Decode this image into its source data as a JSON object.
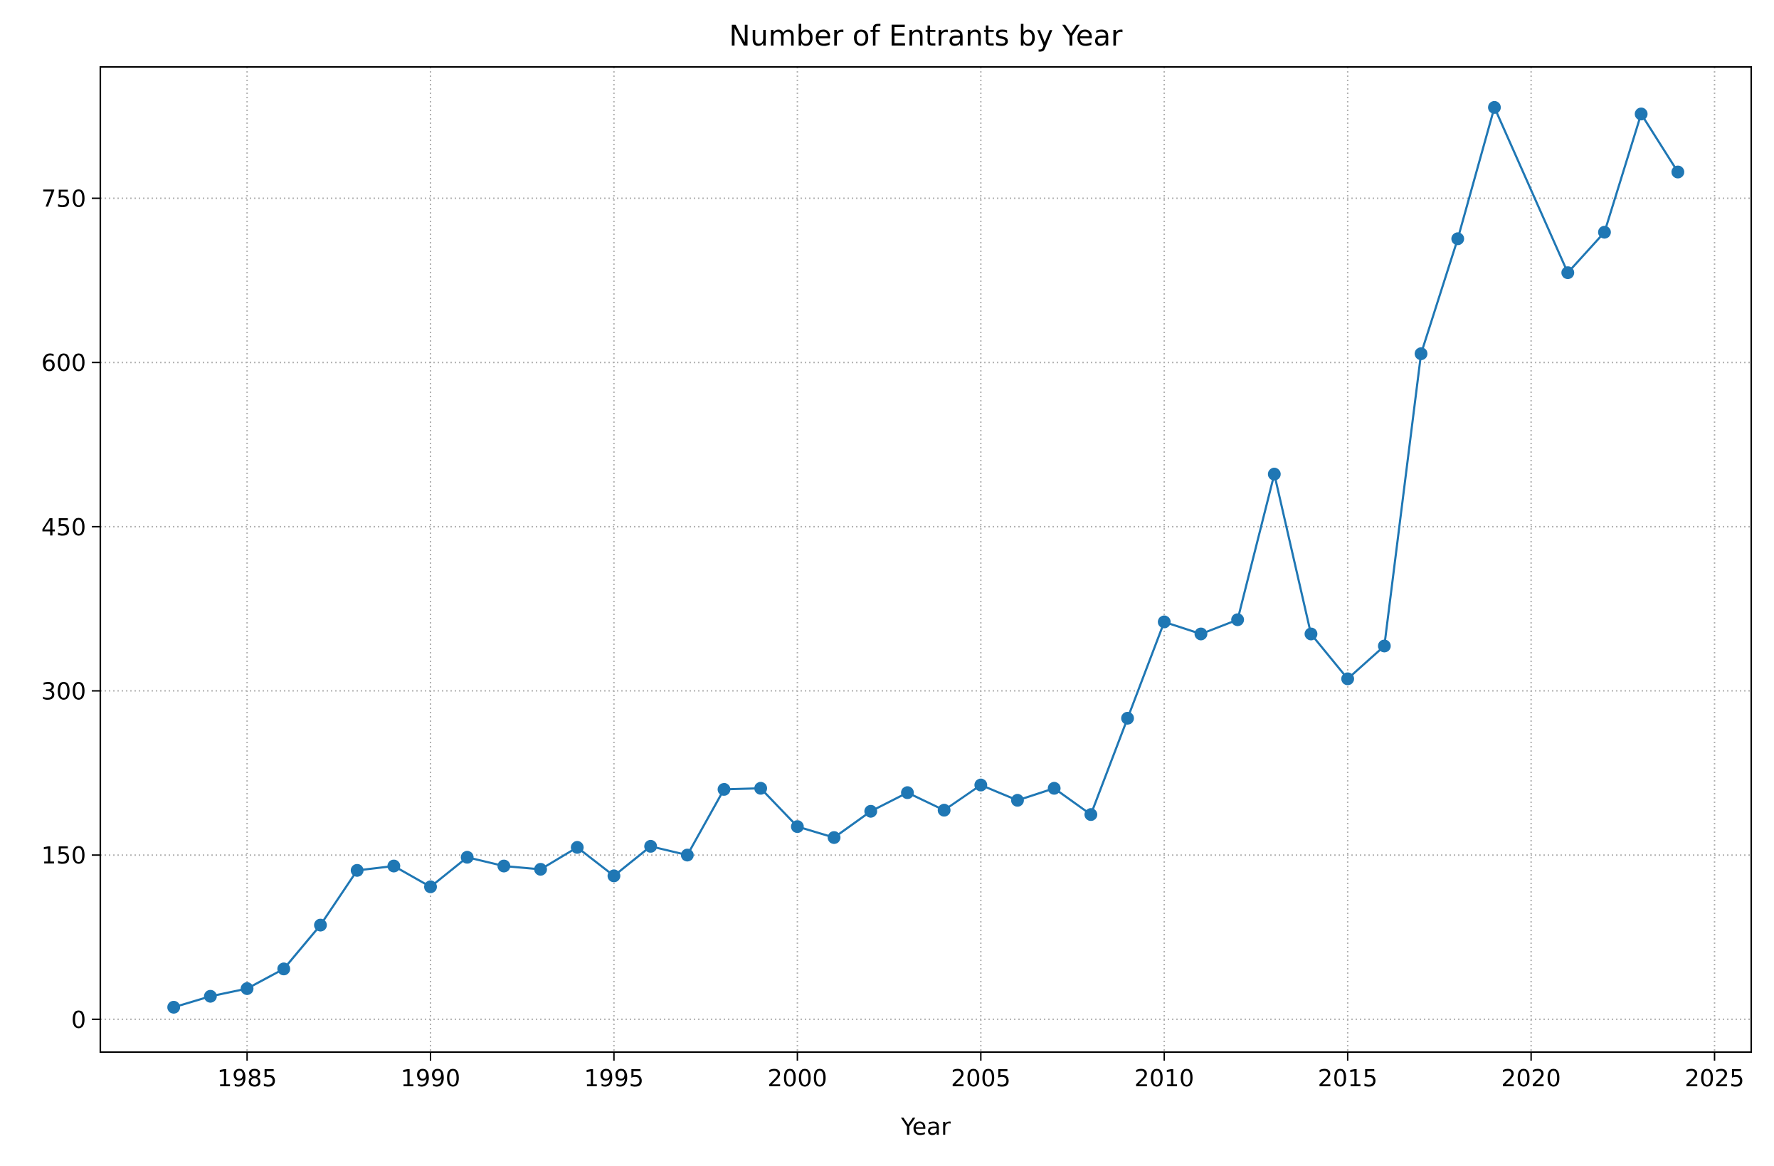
{
  "chart_data": {
    "type": "line",
    "title": "Number of Entrants by Year",
    "xlabel": "Year",
    "ylabel": "",
    "xlim": [
      1981,
      2026
    ],
    "ylim": [
      -30,
      870
    ],
    "xticks": [
      1985,
      1990,
      1995,
      2000,
      2005,
      2010,
      2015,
      2020,
      2025
    ],
    "yticks": [
      0,
      150,
      300,
      450,
      600,
      750
    ],
    "grid": true,
    "grid_style": "dotted",
    "color": "#1f77b4",
    "marker": "circle",
    "x": [
      1983,
      1984,
      1985,
      1986,
      1987,
      1988,
      1989,
      1990,
      1991,
      1992,
      1993,
      1994,
      1995,
      1996,
      1997,
      1998,
      1999,
      2000,
      2001,
      2002,
      2003,
      2004,
      2005,
      2006,
      2007,
      2008,
      2009,
      2010,
      2011,
      2012,
      2013,
      2014,
      2015,
      2016,
      2017,
      2018,
      2019,
      2021,
      2022,
      2023,
      2024
    ],
    "y": [
      11,
      21,
      28,
      46,
      86,
      136,
      140,
      121,
      148,
      140,
      137,
      157,
      131,
      158,
      150,
      210,
      211,
      176,
      166,
      190,
      207,
      191,
      214,
      200,
      211,
      187,
      275,
      363,
      352,
      365,
      498,
      352,
      311,
      341,
      608,
      713,
      833,
      682,
      719,
      827,
      774
    ]
  }
}
